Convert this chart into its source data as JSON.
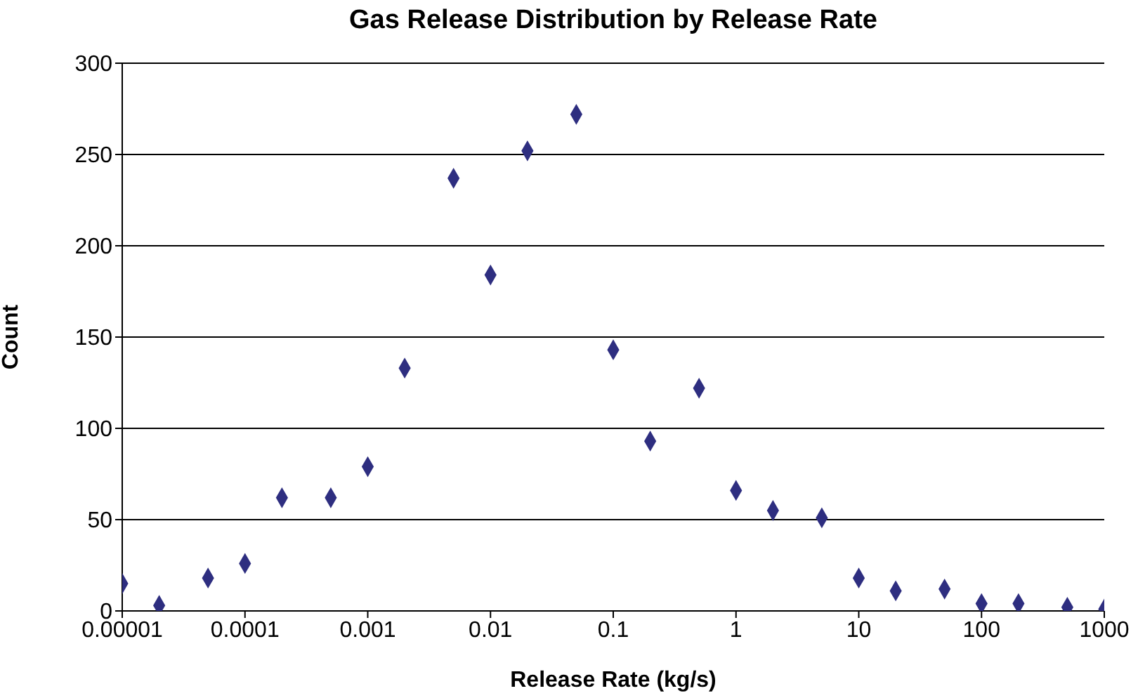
{
  "chart_data": {
    "type": "scatter",
    "title": "Gas Release Distribution by Release Rate",
    "xlabel": "Release Rate (kg/s)",
    "ylabel": "Count",
    "x": [
      1e-05,
      2e-05,
      5e-05,
      0.0001,
      0.0002,
      0.0005,
      0.001,
      0.002,
      0.005,
      0.01,
      0.02,
      0.05,
      0.1,
      0.2,
      0.5,
      1,
      2,
      5,
      10,
      20,
      50,
      100,
      200,
      500,
      1000
    ],
    "series": [
      {
        "color": "#2e2e80",
        "values": [
          15,
          3,
          18,
          26,
          62,
          62,
          79,
          133,
          237,
          184,
          252,
          272,
          143,
          93,
          122,
          66,
          55,
          51,
          18,
          11,
          12,
          4,
          4,
          2,
          1
        ]
      }
    ],
    "log": "x",
    "xlim": [
      1e-05,
      1000
    ],
    "xticks": [
      {
        "value": 1e-05,
        "label": "0.00001"
      },
      0.0001,
      0.001,
      0.01,
      0.1,
      1,
      10,
      100,
      1000
    ],
    "ylim": [
      0,
      300
    ],
    "yticks": [
      0,
      50,
      100,
      150,
      200,
      250,
      300
    ],
    "grid": "y",
    "marker": "diamond",
    "legend": false
  }
}
